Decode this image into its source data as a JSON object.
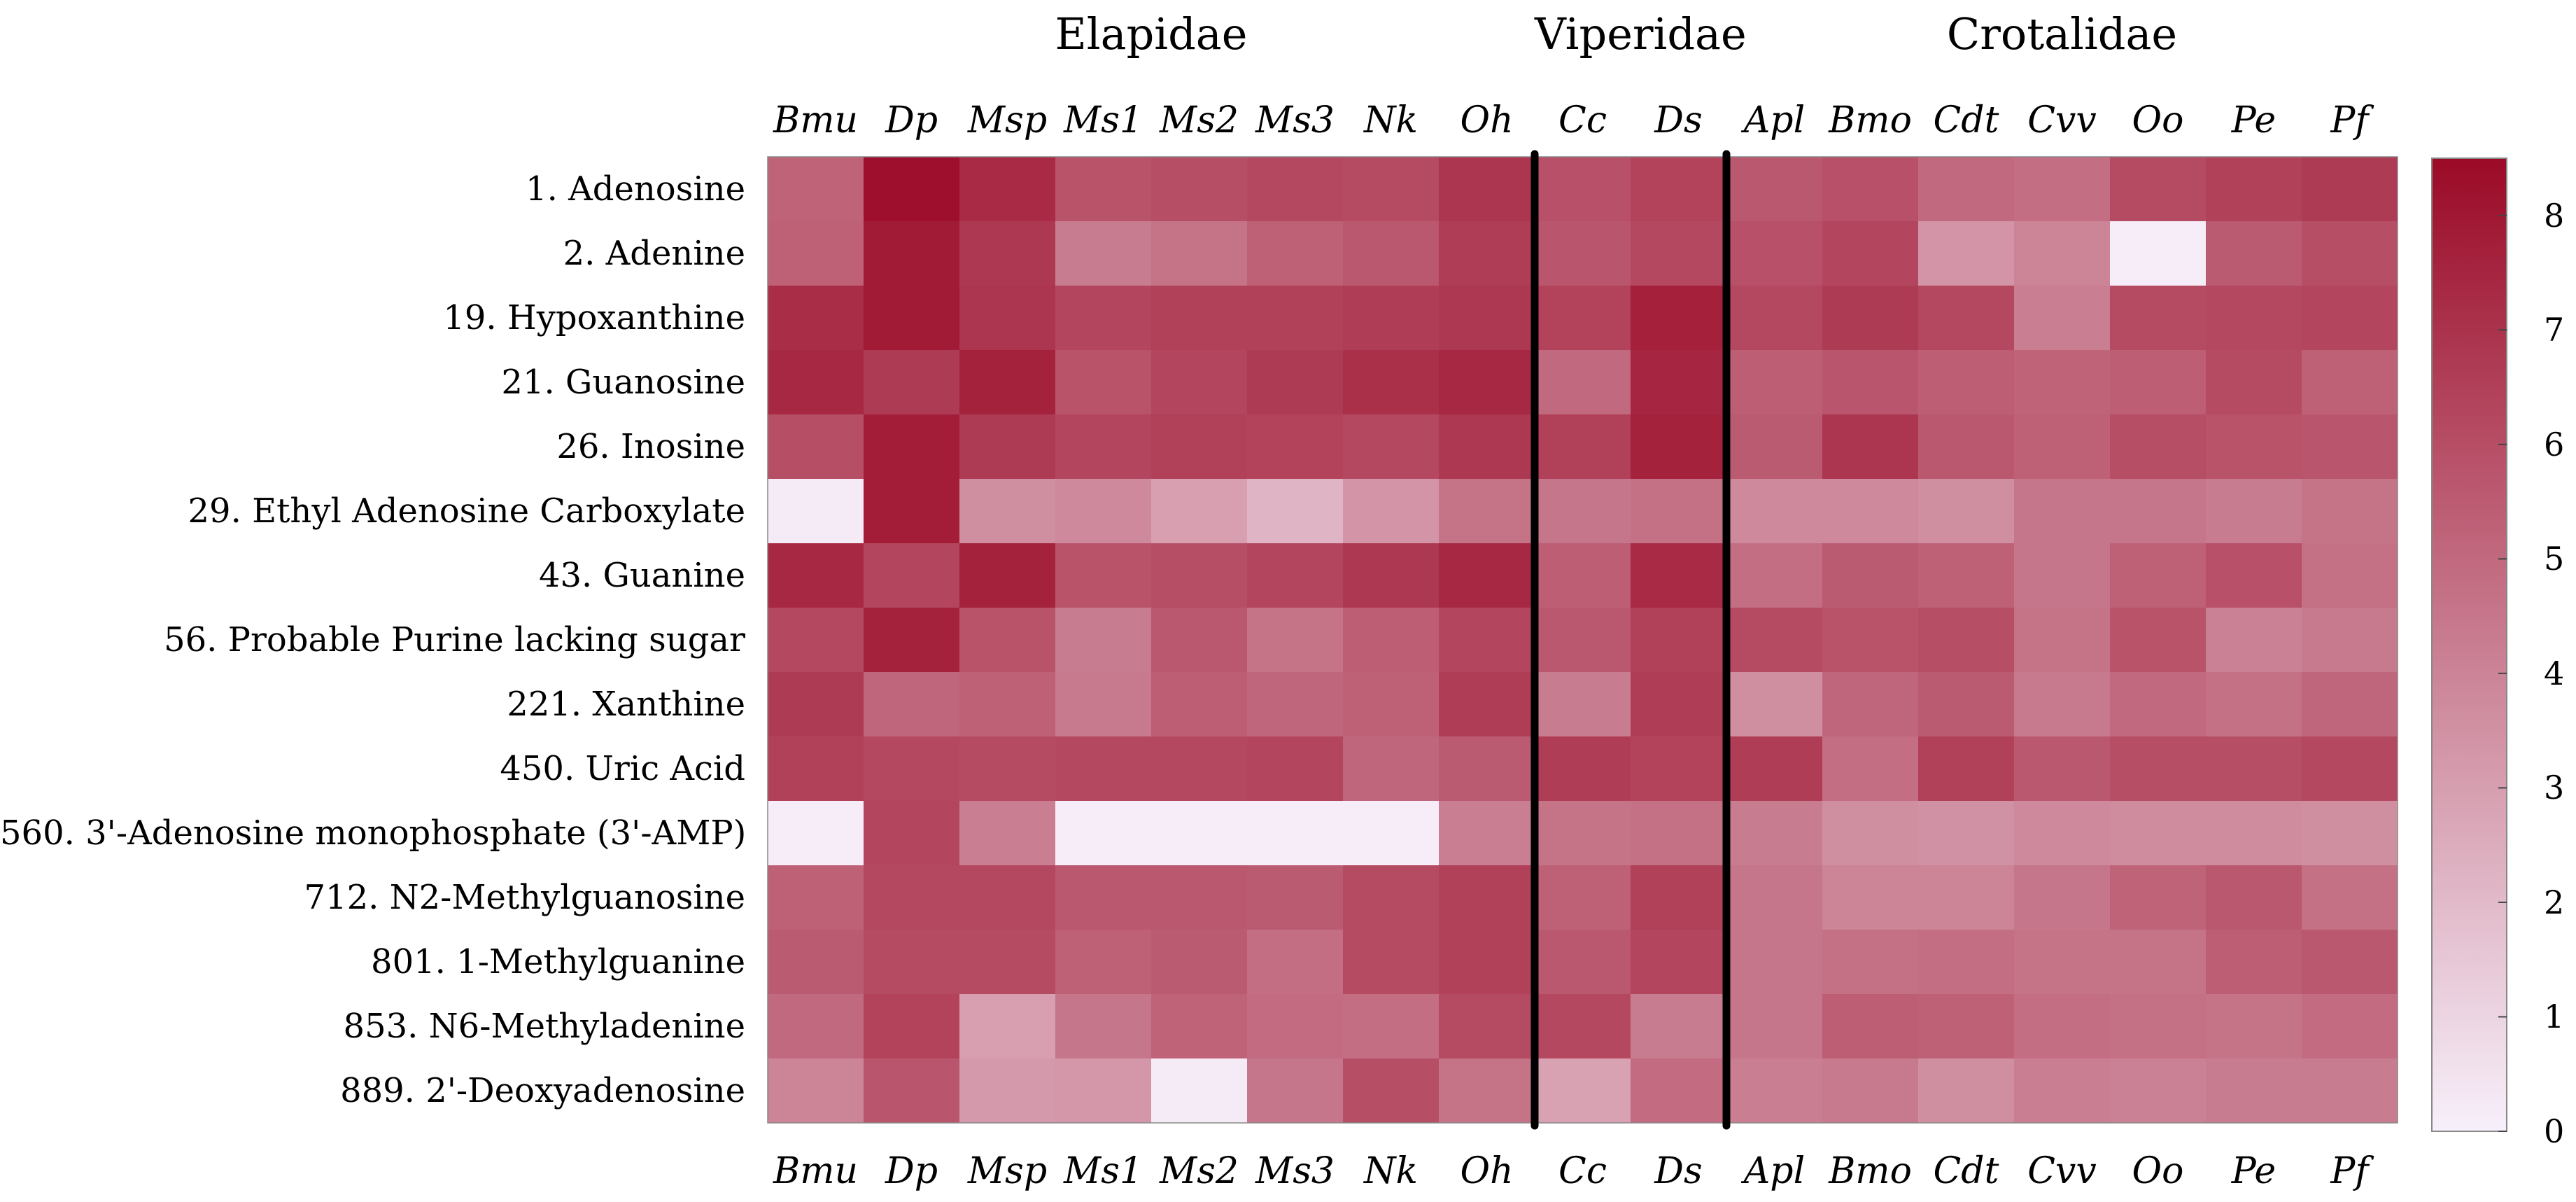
{
  "chart_data": {
    "type": "heatmap",
    "title": "",
    "family_groups": [
      {
        "name": "Elapidae",
        "columns": [
          "Bmu",
          "Dp",
          "Msp",
          "Ms1",
          "Ms2",
          "Ms3",
          "Nk",
          "Oh"
        ]
      },
      {
        "name": "Viperidae",
        "columns": [
          "Cc",
          "Ds"
        ]
      },
      {
        "name": "Crotalidae",
        "columns": [
          "Apl",
          "Bmo",
          "Cdt",
          "Cvv",
          "Oo",
          "Pe",
          "Pf"
        ]
      }
    ],
    "columns": [
      "Bmu",
      "Dp",
      "Msp",
      "Ms1",
      "Ms2",
      "Ms3",
      "Nk",
      "Oh",
      "Cc",
      "Ds",
      "Apl",
      "Bmo",
      "Cdt",
      "Cvv",
      "Oo",
      "Pe",
      "Pf"
    ],
    "rows": [
      "1.  Adenosine",
      "2.  Adenine",
      "19.  Hypoxanthine",
      "21.  Guanosine",
      "26.  Inosine",
      "29.  Ethyl Adenosine Carboxylate",
      "43.  Guanine",
      "56.  Probable Purine lacking sugar",
      "221.  Xanthine",
      "450.  Uric Acid",
      "560.  3'-Adenosine monophosphate (3'-AMP)",
      "712.  N2-Methylguanosine",
      "801.  1-Methylguanine",
      "853.  N6-Methyladenine",
      "889.  2'-Deoxyadenosine"
    ],
    "values": [
      [
        5.2,
        8.3,
        7.3,
        5.8,
        6.0,
        6.2,
        6.1,
        6.9,
        5.9,
        6.4,
        5.6,
        5.9,
        5.0,
        4.8,
        6.1,
        6.5,
        6.7
      ],
      [
        5.3,
        7.9,
        6.8,
        4.3,
        4.6,
        5.3,
        5.6,
        6.6,
        5.7,
        6.2,
        5.9,
        6.3,
        3.4,
        4.0,
        0.1,
        5.5,
        6.0
      ],
      [
        7.2,
        7.9,
        6.9,
        6.3,
        6.5,
        6.5,
        6.6,
        6.8,
        6.4,
        7.7,
        6.2,
        6.7,
        6.2,
        4.2,
        6.1,
        6.2,
        6.3
      ],
      [
        7.4,
        6.7,
        7.6,
        5.8,
        6.3,
        6.7,
        7.1,
        7.4,
        5.0,
        7.5,
        5.4,
        5.7,
        5.4,
        5.2,
        5.4,
        6.1,
        5.3
      ],
      [
        6.0,
        7.8,
        6.7,
        6.3,
        6.5,
        6.4,
        6.2,
        6.8,
        6.5,
        7.6,
        5.5,
        6.9,
        5.6,
        5.3,
        6.0,
        5.8,
        5.7
      ],
      [
        0.2,
        7.8,
        3.6,
        3.8,
        3.0,
        2.2,
        3.4,
        4.6,
        4.5,
        4.7,
        3.8,
        3.8,
        3.6,
        4.5,
        4.5,
        4.3,
        4.6
      ],
      [
        7.4,
        6.3,
        7.6,
        5.8,
        6.0,
        6.3,
        6.8,
        7.4,
        5.4,
        7.3,
        4.8,
        5.5,
        5.3,
        4.5,
        5.3,
        5.9,
        4.7
      ],
      [
        6.2,
        7.6,
        5.8,
        4.3,
        5.6,
        4.6,
        5.4,
        6.3,
        5.6,
        6.5,
        6.1,
        5.8,
        6.0,
        4.6,
        5.8,
        4.1,
        4.4
      ],
      [
        6.7,
        5.1,
        5.3,
        4.4,
        5.4,
        5.1,
        5.3,
        6.6,
        4.3,
        6.6,
        3.6,
        5.1,
        5.5,
        4.4,
        5.0,
        4.7,
        5.1
      ],
      [
        6.5,
        6.2,
        6.1,
        6.2,
        6.2,
        6.3,
        5.1,
        5.5,
        6.6,
        6.4,
        6.6,
        4.8,
        6.5,
        5.6,
        6.0,
        6.0,
        6.2
      ],
      [
        0.1,
        6.3,
        4.2,
        0.1,
        0.1,
        0.1,
        0.1,
        4.2,
        4.6,
        4.7,
        4.3,
        3.6,
        3.5,
        3.8,
        3.7,
        3.7,
        3.6
      ],
      [
        5.3,
        6.2,
        6.2,
        5.6,
        5.6,
        5.5,
        6.1,
        6.5,
        5.3,
        6.5,
        4.5,
        4.0,
        4.0,
        4.5,
        5.2,
        5.6,
        4.7
      ],
      [
        5.5,
        6.1,
        6.1,
        5.3,
        5.5,
        4.8,
        6.1,
        6.5,
        5.6,
        6.3,
        4.5,
        4.7,
        4.8,
        4.6,
        4.6,
        5.4,
        5.6
      ],
      [
        5.0,
        6.4,
        3.0,
        4.5,
        5.2,
        4.9,
        4.8,
        6.1,
        6.2,
        4.3,
        4.5,
        5.4,
        5.3,
        4.8,
        4.7,
        4.6,
        4.9
      ],
      [
        4.0,
        5.7,
        3.2,
        3.3,
        0.2,
        4.5,
        6.0,
        4.6,
        2.9,
        4.9,
        4.2,
        4.4,
        3.6,
        4.2,
        4.1,
        4.3,
        4.3
      ]
    ],
    "colorbar": {
      "min": 0,
      "max": 8.5,
      "ticks": [
        0,
        1,
        2,
        3,
        4,
        5,
        6,
        7,
        8
      ]
    },
    "group_separators_after_columns": [
      "Oh",
      "Ds"
    ],
    "colors": {
      "low": "#f7f0fb",
      "high": "#9b0a27",
      "separator": "#000000",
      "border": "#888888"
    }
  }
}
